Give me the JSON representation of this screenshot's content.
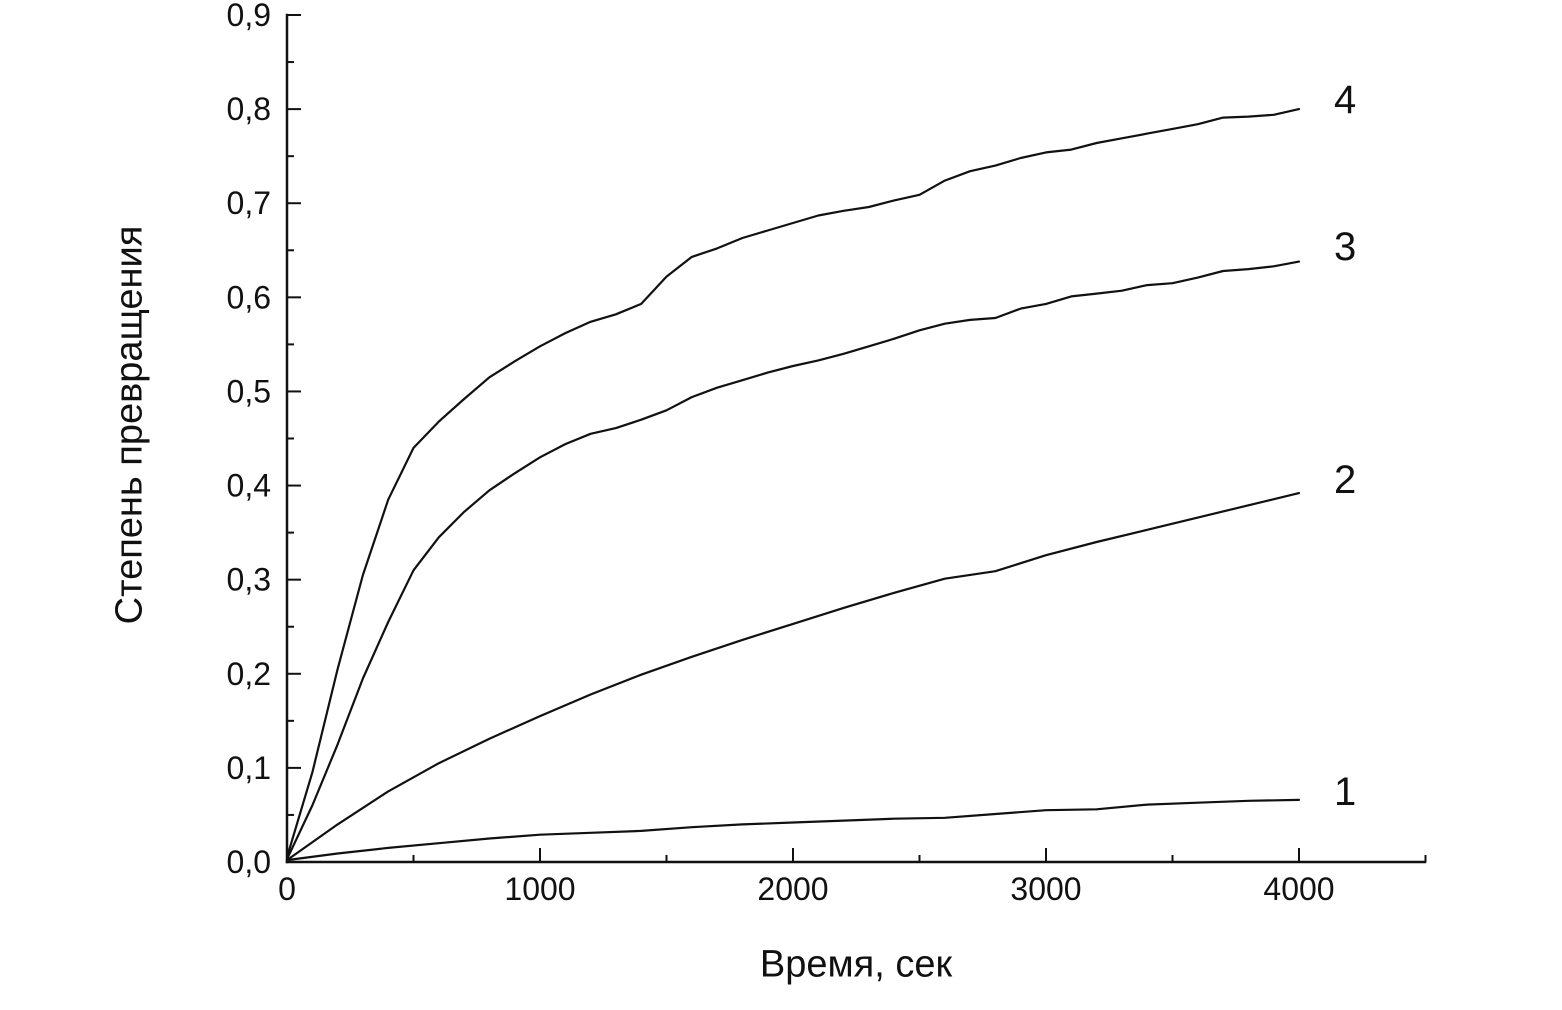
{
  "chart_data": {
    "type": "line",
    "title": "",
    "xlabel": "Время, сек",
    "ylabel": "Степень превращения",
    "xlim": [
      0,
      4500
    ],
    "ylim": [
      0.0,
      0.9
    ],
    "grid": false,
    "legend_position": "none",
    "line_color": "#111111",
    "axis_color": "#111111",
    "x_tick_values": [
      0,
      1000,
      2000,
      3000,
      4000
    ],
    "x_tick_labels": [
      "0",
      "1000",
      "2000",
      "3000",
      "4000"
    ],
    "y_tick_values": [
      0.0,
      0.1,
      0.2,
      0.3,
      0.4,
      0.5,
      0.6,
      0.7,
      0.8,
      0.9
    ],
    "y_tick_labels": [
      "0,0",
      "0,1",
      "0,2",
      "0,3",
      "0,4",
      "0,5",
      "0,6",
      "0,7",
      "0,8",
      "0,9"
    ],
    "x_minor_step": 500,
    "y_minor_step": 0.05,
    "series": [
      {
        "name": "1",
        "x": [
          0,
          200,
          400,
          600,
          800,
          1000,
          1200,
          1400,
          1600,
          1800,
          2000,
          2200,
          2400,
          2600,
          2800,
          3000,
          3200,
          3400,
          3600,
          3800,
          4000
        ],
        "y": [
          0.002,
          0.009,
          0.015,
          0.02,
          0.025,
          0.029,
          0.031,
          0.033,
          0.037,
          0.04,
          0.042,
          0.044,
          0.046,
          0.047,
          0.051,
          0.055,
          0.056,
          0.061,
          0.063,
          0.065,
          0.066
        ]
      },
      {
        "name": "2",
        "x": [
          0,
          200,
          400,
          600,
          800,
          1000,
          1200,
          1400,
          1600,
          1800,
          2000,
          2200,
          2400,
          2600,
          2800,
          3000,
          3200,
          3400,
          3600,
          3800,
          4000
        ],
        "y": [
          0.002,
          0.04,
          0.075,
          0.105,
          0.131,
          0.155,
          0.178,
          0.199,
          0.218,
          0.236,
          0.253,
          0.27,
          0.286,
          0.301,
          0.309,
          0.326,
          0.34,
          0.353,
          0.366,
          0.379,
          0.392
        ]
      },
      {
        "name": "3",
        "x": [
          0,
          100,
          200,
          300,
          400,
          500,
          600,
          700,
          800,
          900,
          1000,
          1100,
          1200,
          1300,
          1400,
          1500,
          1600,
          1700,
          1800,
          1900,
          2000,
          2100,
          2200,
          2300,
          2400,
          2500,
          2600,
          2700,
          2800,
          2900,
          3000,
          3100,
          3200,
          3300,
          3400,
          3500,
          3600,
          3700,
          3800,
          3900,
          4000
        ],
        "y": [
          0.003,
          0.06,
          0.125,
          0.195,
          0.255,
          0.31,
          0.345,
          0.372,
          0.395,
          0.413,
          0.43,
          0.444,
          0.455,
          0.461,
          0.47,
          0.48,
          0.494,
          0.504,
          0.512,
          0.52,
          0.527,
          0.533,
          0.54,
          0.548,
          0.556,
          0.565,
          0.572,
          0.576,
          0.578,
          0.588,
          0.593,
          0.601,
          0.604,
          0.607,
          0.613,
          0.615,
          0.621,
          0.628,
          0.63,
          0.633,
          0.638
        ]
      },
      {
        "name": "4",
        "x": [
          0,
          100,
          200,
          300,
          400,
          500,
          600,
          700,
          800,
          900,
          1000,
          1100,
          1200,
          1300,
          1400,
          1500,
          1600,
          1700,
          1800,
          1900,
          2000,
          2100,
          2200,
          2300,
          2400,
          2500,
          2600,
          2700,
          2800,
          2900,
          3000,
          3100,
          3200,
          3300,
          3400,
          3500,
          3600,
          3700,
          3800,
          3900,
          4000
        ],
        "y": [
          0.005,
          0.095,
          0.205,
          0.305,
          0.385,
          0.44,
          0.468,
          0.492,
          0.515,
          0.532,
          0.548,
          0.562,
          0.574,
          0.582,
          0.593,
          0.622,
          0.643,
          0.652,
          0.663,
          0.671,
          0.679,
          0.687,
          0.692,
          0.696,
          0.703,
          0.709,
          0.724,
          0.734,
          0.74,
          0.748,
          0.754,
          0.757,
          0.764,
          0.769,
          0.774,
          0.779,
          0.784,
          0.791,
          0.792,
          0.794,
          0.8
        ]
      }
    ]
  }
}
